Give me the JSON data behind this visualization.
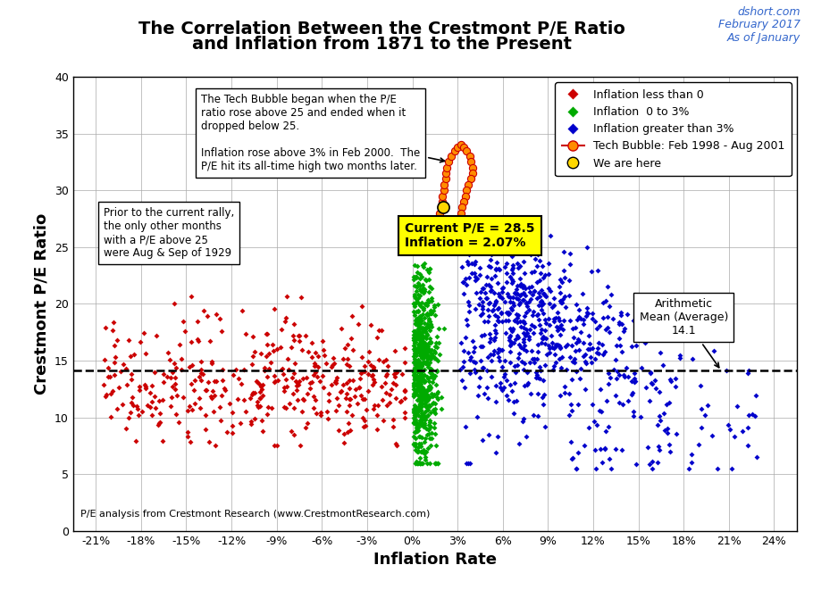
{
  "title_line1": "The Correlation Between the Crestmont P/E Ratio",
  "title_line2": "and Inflation from 1871 to the Present",
  "watermark_line1": "dshort.com",
  "watermark_line2": "February 2017",
  "watermark_line3": "As of January",
  "xlabel": "Inflation Rate",
  "ylabel": "Crestmont P/E Ratio",
  "xlim": [
    -0.225,
    0.255
  ],
  "ylim": [
    0,
    40
  ],
  "xticks": [
    -0.21,
    -0.18,
    -0.15,
    -0.12,
    -0.09,
    -0.06,
    -0.03,
    0.0,
    0.03,
    0.06,
    0.09,
    0.12,
    0.15,
    0.18,
    0.21,
    0.24
  ],
  "xtick_labels": [
    "-21%",
    "-18%",
    "-15%",
    "-12%",
    "-9%",
    "-6%",
    "-3%",
    "0%",
    "3%",
    "6%",
    "9%",
    "12%",
    "15%",
    "18%",
    "21%",
    "24%"
  ],
  "yticks": [
    0,
    5,
    10,
    15,
    20,
    25,
    30,
    35,
    40
  ],
  "mean_pe": 14.1,
  "current_pe": 28.5,
  "current_inflation": 0.0207,
  "annotation_tech_bubble": "The Tech Bubble began when the P/E\nratio rose above 25 and ended when it\ndropped below 25.\n\nInflation rose above 3% in Feb 2000.  The\nP/E hit its all-time high two months later.",
  "annotation_1929": "Prior to the current rally,\nthe only other months\nwith a P/E above 25\nwere Aug & Sep of 1929",
  "annotation_current": "Current P/E = 28.5\nInflation = 2.07%",
  "annotation_mean": "Arithmetic\nMean (Average)\n14.1",
  "footer_text": "P/E analysis from Crestmont Research (www.CrestmontResearch.com)",
  "color_neg": "#CC0000",
  "color_low": "#00AA00",
  "color_high": "#0000CC",
  "color_bubble": "#FF8C00",
  "color_bubble_line": "#CC0000",
  "color_current": "#FFD700",
  "seed": 42
}
